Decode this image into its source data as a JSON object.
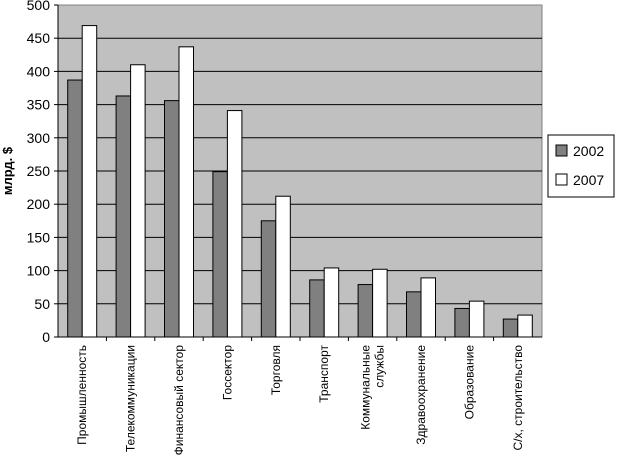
{
  "chart_data": {
    "type": "bar",
    "title": "",
    "xlabel": "",
    "ylabel": "млрд. $",
    "ylim": [
      0,
      500
    ],
    "yticks": [
      0,
      50,
      100,
      150,
      200,
      250,
      300,
      350,
      400,
      450,
      500
    ],
    "grid": true,
    "legend_position": "right",
    "categories": [
      "Промышленность",
      "Телекоммуникации",
      "Финансовый сектор",
      "Госсектор",
      "Торговля",
      "Транспорт",
      "Коммунальные службы",
      "Здравоохранение",
      "Образование",
      "С/х, строительство"
    ],
    "series": [
      {
        "name": "2002",
        "color": "#808080",
        "values": [
          387,
          363,
          356,
          249,
          175,
          86,
          79,
          68,
          43,
          27
        ]
      },
      {
        "name": "2007",
        "color": "#ffffff",
        "values": [
          469,
          410,
          437,
          341,
          212,
          104,
          102,
          89,
          54,
          33
        ]
      }
    ]
  }
}
